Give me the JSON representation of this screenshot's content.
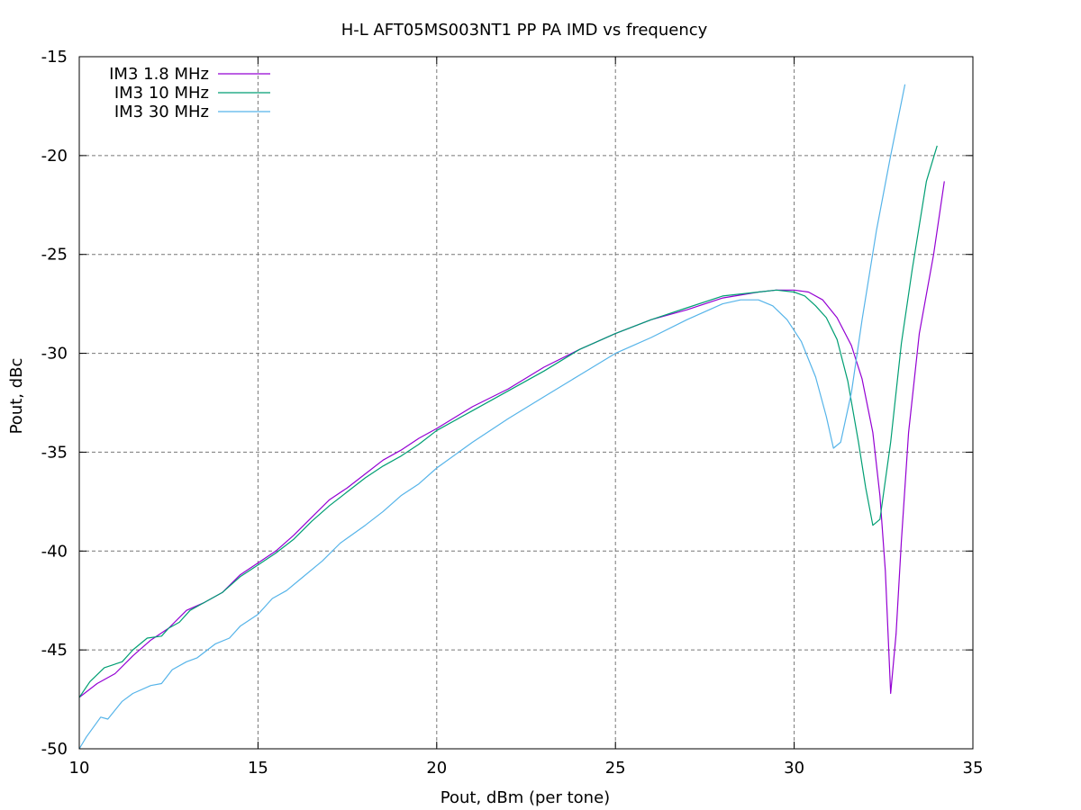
{
  "chart_data": {
    "type": "line",
    "title": "H-L AFT05MS003NT1 PP PA IMD vs frequency",
    "xlabel": "Pout, dBm (per tone)",
    "ylabel": "Pout, dBc",
    "xlim": [
      10,
      35
    ],
    "ylim": [
      -50,
      -15
    ],
    "xticks": [
      10,
      15,
      20,
      25,
      30,
      35
    ],
    "yticks": [
      -15,
      -20,
      -25,
      -30,
      -35,
      -40,
      -45,
      -50
    ],
    "grid": true,
    "legend_position": "top-left",
    "series": [
      {
        "name": "IM3 1.8 MHz",
        "color": "#9400d3",
        "points": [
          [
            10,
            -47.4
          ],
          [
            10.5,
            -46.7
          ],
          [
            11,
            -46.2
          ],
          [
            11.5,
            -45.3
          ],
          [
            12,
            -44.5
          ],
          [
            12.5,
            -43.9
          ],
          [
            13,
            -43.0
          ],
          [
            13.5,
            -42.6
          ],
          [
            14,
            -42.1
          ],
          [
            14.5,
            -41.2
          ],
          [
            15,
            -40.6
          ],
          [
            15.5,
            -40.0
          ],
          [
            16,
            -39.2
          ],
          [
            16.5,
            -38.3
          ],
          [
            17,
            -37.4
          ],
          [
            17.5,
            -36.8
          ],
          [
            18,
            -36.1
          ],
          [
            18.5,
            -35.4
          ],
          [
            19,
            -34.9
          ],
          [
            19.5,
            -34.3
          ],
          [
            20,
            -33.8
          ],
          [
            21,
            -32.7
          ],
          [
            22,
            -31.8
          ],
          [
            23,
            -30.7
          ],
          [
            24,
            -29.8
          ],
          [
            25,
            -29.0
          ],
          [
            26,
            -28.3
          ],
          [
            27,
            -27.8
          ],
          [
            28,
            -27.2
          ],
          [
            29,
            -26.9
          ],
          [
            29.5,
            -26.8
          ],
          [
            30,
            -26.8
          ],
          [
            30.4,
            -26.9
          ],
          [
            30.8,
            -27.3
          ],
          [
            31.2,
            -28.2
          ],
          [
            31.6,
            -29.6
          ],
          [
            31.9,
            -31.3
          ],
          [
            32.2,
            -34.0
          ],
          [
            32.4,
            -37.2
          ],
          [
            32.55,
            -41.0
          ],
          [
            32.7,
            -47.2
          ],
          [
            32.85,
            -44.2
          ],
          [
            33.0,
            -39.5
          ],
          [
            33.2,
            -34.0
          ],
          [
            33.5,
            -29.0
          ],
          [
            33.9,
            -25.0
          ],
          [
            34.2,
            -21.3
          ]
        ]
      },
      {
        "name": "IM3 10 MHz",
        "color": "#009e73",
        "points": [
          [
            10,
            -47.4
          ],
          [
            10.3,
            -46.6
          ],
          [
            10.7,
            -45.9
          ],
          [
            11.2,
            -45.6
          ],
          [
            11.5,
            -45.0
          ],
          [
            11.9,
            -44.4
          ],
          [
            12.3,
            -44.3
          ],
          [
            12.5,
            -43.9
          ],
          [
            12.8,
            -43.6
          ],
          [
            13.1,
            -43.0
          ],
          [
            13.5,
            -42.6
          ],
          [
            14,
            -42.1
          ],
          [
            14.5,
            -41.3
          ],
          [
            15,
            -40.7
          ],
          [
            15.5,
            -40.1
          ],
          [
            16,
            -39.4
          ],
          [
            16.5,
            -38.5
          ],
          [
            17,
            -37.7
          ],
          [
            17.5,
            -37.0
          ],
          [
            18,
            -36.3
          ],
          [
            18.5,
            -35.7
          ],
          [
            19,
            -35.2
          ],
          [
            19.5,
            -34.6
          ],
          [
            20,
            -33.9
          ],
          [
            21,
            -32.9
          ],
          [
            22,
            -31.9
          ],
          [
            23,
            -30.9
          ],
          [
            24,
            -29.8
          ],
          [
            25,
            -29.0
          ],
          [
            26,
            -28.3
          ],
          [
            27,
            -27.7
          ],
          [
            28,
            -27.1
          ],
          [
            29,
            -26.9
          ],
          [
            29.5,
            -26.8
          ],
          [
            30,
            -26.9
          ],
          [
            30.3,
            -27.1
          ],
          [
            30.6,
            -27.6
          ],
          [
            30.9,
            -28.2
          ],
          [
            31.2,
            -29.3
          ],
          [
            31.5,
            -31.4
          ],
          [
            31.8,
            -34.5
          ],
          [
            32.0,
            -36.8
          ],
          [
            32.2,
            -38.7
          ],
          [
            32.4,
            -38.4
          ],
          [
            32.7,
            -34.5
          ],
          [
            33.0,
            -29.5
          ],
          [
            33.3,
            -25.8
          ],
          [
            33.7,
            -21.3
          ],
          [
            34.0,
            -19.5
          ]
        ]
      },
      {
        "name": "IM3 30 MHz",
        "color": "#56b4e9",
        "points": [
          [
            10,
            -50.0
          ],
          [
            10.2,
            -49.4
          ],
          [
            10.6,
            -48.4
          ],
          [
            10.8,
            -48.5
          ],
          [
            11.2,
            -47.6
          ],
          [
            11.5,
            -47.2
          ],
          [
            12,
            -46.8
          ],
          [
            12.3,
            -46.7
          ],
          [
            12.6,
            -46.0
          ],
          [
            13,
            -45.6
          ],
          [
            13.3,
            -45.4
          ],
          [
            13.8,
            -44.7
          ],
          [
            14.2,
            -44.4
          ],
          [
            14.5,
            -43.8
          ],
          [
            15,
            -43.2
          ],
          [
            15.4,
            -42.4
          ],
          [
            15.8,
            -42.0
          ],
          [
            16.2,
            -41.4
          ],
          [
            16.8,
            -40.5
          ],
          [
            17.3,
            -39.6
          ],
          [
            18,
            -38.7
          ],
          [
            18.5,
            -38.0
          ],
          [
            19,
            -37.2
          ],
          [
            19.5,
            -36.6
          ],
          [
            20,
            -35.8
          ],
          [
            21,
            -34.5
          ],
          [
            22,
            -33.3
          ],
          [
            23,
            -32.2
          ],
          [
            24,
            -31.1
          ],
          [
            25,
            -30.0
          ],
          [
            26,
            -29.2
          ],
          [
            27,
            -28.3
          ],
          [
            28,
            -27.5
          ],
          [
            28.5,
            -27.3
          ],
          [
            29,
            -27.3
          ],
          [
            29.4,
            -27.6
          ],
          [
            29.8,
            -28.3
          ],
          [
            30.2,
            -29.4
          ],
          [
            30.6,
            -31.2
          ],
          [
            30.9,
            -33.2
          ],
          [
            31.1,
            -34.8
          ],
          [
            31.3,
            -34.5
          ],
          [
            31.6,
            -32.0
          ],
          [
            31.9,
            -28.3
          ],
          [
            32.3,
            -23.8
          ],
          [
            32.7,
            -20.0
          ],
          [
            33.1,
            -16.4
          ]
        ]
      }
    ]
  }
}
